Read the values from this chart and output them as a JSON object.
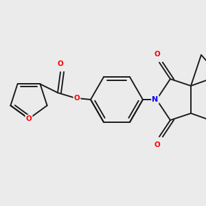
{
  "bg_color": "#ebebeb",
  "bond_color": "#1a1a1a",
  "N_color": "#0000ff",
  "O_color": "#ff0000",
  "lw": 1.4,
  "figsize": [
    3.0,
    3.0
  ],
  "dpi": 100,
  "xlim": [
    0,
    300
  ],
  "ylim": [
    0,
    300
  ]
}
